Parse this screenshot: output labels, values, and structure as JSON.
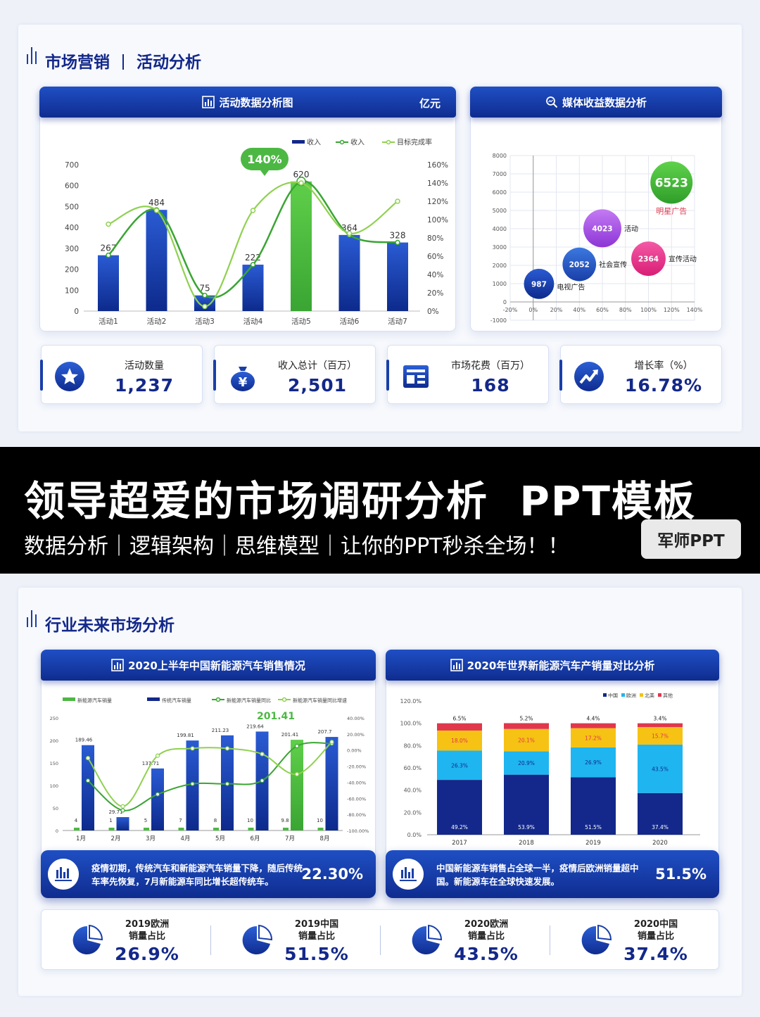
{
  "slide1": {
    "title_left": "市场营销",
    "title_right": "活动分析",
    "panel_left": {
      "title": "活动数据分析图",
      "unit": "亿元"
    },
    "panel_right": {
      "title": "媒体收益数据分析"
    },
    "callout": "140%",
    "kpis": [
      {
        "label": "活动数量",
        "value": "1,237",
        "icon": "star-icon"
      },
      {
        "label": "收入总计（百万）",
        "value": "2,501",
        "icon": "money-bag-icon"
      },
      {
        "label": "市场花费（百万）",
        "value": "168",
        "icon": "document-icon"
      },
      {
        "label": "增长率（%）",
        "value": "16.78%",
        "icon": "trend-up-icon"
      }
    ]
  },
  "banner": {
    "title": "领导超爱的市场调研分析  PPT模板",
    "subtitle": "数据分析｜逻辑架构｜思维模型｜让你的PPT秒杀全场！！",
    "button": "军师PPT"
  },
  "slide2": {
    "title": "行业未来市场分析",
    "panel_left": {
      "title": "2020上半年中国新能源汽车销售情况"
    },
    "panel_right": {
      "title": "2020年世界新能源汽车产销量对比分析"
    },
    "callout": "201.41",
    "note_left": {
      "text": "疫情初期，传统汽车和新能源汽车销量下降，随后传统车率先恢复，7月新能源车同比增长超传统车。",
      "value": "22.30%"
    },
    "note_right": {
      "text": "中国新能源车销售占全球一半，疫情后欧洲销量超中国。新能源车在全球快速发展。",
      "value": "51.5%"
    },
    "stats": [
      {
        "label1": "2019欧洲",
        "label2": "销量占比",
        "value": "26.9%"
      },
      {
        "label1": "2019中国",
        "label2": "销量占比",
        "value": "51.5%"
      },
      {
        "label1": "2020欧洲",
        "label2": "销量占比",
        "value": "43.5%"
      },
      {
        "label1": "2020中国",
        "label2": "销量占比",
        "value": "37.4%"
      }
    ]
  },
  "colors": {
    "navy": "#13288a",
    "blue": "#1a3fa8",
    "green": "#4cb843",
    "light_green": "#8fd14f",
    "sky": "#1fb5f0",
    "yellow": "#f6c213",
    "red": "#e0374c",
    "purple": "#a64ee8",
    "pink": "#e83a8f"
  },
  "chart_data": [
    {
      "type": "bar",
      "categories": [
        "活动1",
        "活动2",
        "活动3",
        "活动4",
        "活动5",
        "活动6",
        "活动7"
      ],
      "series": [
        {
          "name": "收入",
          "type": "bar",
          "values": [
            267,
            484,
            75,
            222,
            620,
            364,
            328
          ]
        },
        {
          "name": "收入",
          "type": "line",
          "values": [
            267,
            484,
            75,
            222,
            620,
            364,
            328
          ]
        },
        {
          "name": "目标完成率",
          "type": "line",
          "axis": "right",
          "values": [
            95,
            110,
            5,
            110,
            140,
            85,
            120
          ]
        }
      ],
      "ylim": [
        0,
        700
      ],
      "yticks": [
        0,
        100,
        200,
        300,
        400,
        500,
        600,
        700
      ],
      "y2lim": [
        0,
        160
      ],
      "y2ticks": [
        "0%",
        "20%",
        "40%",
        "60%",
        "80%",
        "100%",
        "120%",
        "140%",
        "160%"
      ],
      "highlight_index": 4,
      "legend": "top-right"
    },
    {
      "type": "scatter",
      "points": [
        {
          "label": "电视广告",
          "x": 5,
          "y": 987,
          "size": 987,
          "color": "#13288a"
        },
        {
          "label": "社会宣传",
          "x": 40,
          "y": 2052,
          "size": 2052,
          "color": "#1a3fa8"
        },
        {
          "label": "活动",
          "x": 60,
          "y": 4023,
          "size": 4023,
          "color": "#a64ee8"
        },
        {
          "label": "宣传活动",
          "x": 100,
          "y": 2364,
          "size": 2364,
          "color": "#e83a8f"
        },
        {
          "label": "明星广告",
          "x": 120,
          "y": 6523,
          "size": 6523,
          "color": "#4cb843"
        }
      ],
      "xlim": [
        -20,
        140
      ],
      "xticks": [
        "-20%",
        "0%",
        "20%",
        "40%",
        "60%",
        "80%",
        "100%",
        "120%",
        "140%"
      ],
      "ylim": [
        -1000,
        8000
      ],
      "yticks": [
        "-1000",
        "0",
        "1000",
        "2000",
        "3000",
        "4000",
        "5000",
        "6000",
        "7000",
        "8000"
      ],
      "grid": true
    },
    {
      "type": "bar",
      "categories": [
        "1月",
        "2月",
        "3月",
        "4月",
        "5月",
        "6月",
        "7月",
        "8月"
      ],
      "series": [
        {
          "name": "新能源汽车销量",
          "type": "bar",
          "values": [
            4,
            1,
            5,
            7,
            8,
            10,
            9.8,
            10
          ]
        },
        {
          "name": "传统汽车销量",
          "type": "bar",
          "values": [
            189.46,
            29.71,
            137.71,
            199.81,
            211.23,
            219.64,
            201.41,
            207.7
          ]
        },
        {
          "name": "新能源汽车销量同比",
          "type": "line",
          "axis": "right",
          "values": [
            -38,
            -75,
            -55,
            -42,
            -42,
            -38,
            5,
            8
          ]
        },
        {
          "name": "新能源汽车销量同比增速",
          "type": "line",
          "axis": "right",
          "values": [
            -10,
            -70,
            -7,
            2,
            2,
            -5,
            -30,
            10
          ]
        }
      ],
      "ylim": [
        0,
        250
      ],
      "yticks": [
        "0",
        "50",
        "100",
        "150",
        "200",
        "250"
      ],
      "y2ticks": [
        "-100.00%",
        "-80.00%",
        "-60.00%",
        "-40.00%",
        "-20.00%",
        "0.00%",
        "20.00%",
        "40.00%"
      ],
      "y2lim": [
        -100,
        40
      ],
      "highlight_index": 6,
      "legend": "top"
    },
    {
      "type": "bar",
      "stacked": true,
      "categories": [
        "2017",
        "2018",
        "2019",
        "2020"
      ],
      "series": [
        {
          "name": "中国",
          "values": [
            49.2,
            53.9,
            51.5,
            37.4
          ],
          "color": "#13288a"
        },
        {
          "name": "欧洲",
          "values": [
            26.3,
            20.9,
            26.9,
            43.5
          ],
          "color": "#1fb5f0"
        },
        {
          "name": "北美",
          "values": [
            18.0,
            20.1,
            17.2,
            15.7
          ],
          "color": "#f6c213"
        },
        {
          "name": "其他",
          "values": [
            6.5,
            5.2,
            4.4,
            3.4
          ],
          "color": "#e0374c"
        }
      ],
      "labels": [
        [
          "49.2%",
          "26.3%",
          "18.0%",
          "6.5%"
        ],
        [
          "53.9%",
          "20.9%",
          "20.1%",
          "5.2%"
        ],
        [
          "51.5%",
          "26.9%",
          "17.2%",
          "4.4%"
        ],
        [
          "37.4%",
          "43.5%",
          "15.7%",
          "3.4%"
        ]
      ],
      "ylim": [
        0,
        120
      ],
      "yticks": [
        "0.0%",
        "20.0%",
        "40.0%",
        "60.0%",
        "80.0%",
        "100.0%",
        "120.0%"
      ],
      "legend": "top-right"
    }
  ]
}
